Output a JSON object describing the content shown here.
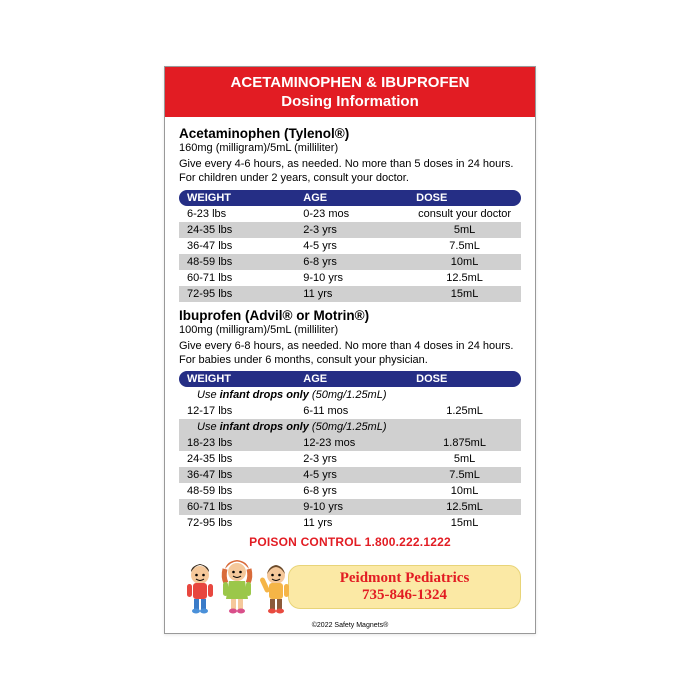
{
  "colors": {
    "header_bg": "#e21c23",
    "header_fg": "#ffffff",
    "table_header_bg": "#252e85",
    "band_bg": "#d0d0d0",
    "poison_color": "#e21c23",
    "practice_bg": "#fbe9a5",
    "practice_fg": "#e21c23"
  },
  "header": {
    "line1": "ACETAMINOPHEN & IBUPROFEN",
    "line2": "Dosing Information"
  },
  "acetaminophen": {
    "title": "Acetaminophen (Tylenol®)",
    "concentration": "160mg (milligram)/5mL (milliliter)",
    "instructions": "Give every 4-6 hours, as needed. No more than 5 doses in 24 hours. For children under 2 years, consult your doctor.",
    "columns": {
      "weight": "WEIGHT",
      "age": "AGE",
      "dose": "DOSE"
    },
    "rows": [
      {
        "weight": "6-23 lbs",
        "age": "0-23 mos",
        "dose": "consult your doctor",
        "band": false
      },
      {
        "weight": "24-35 lbs",
        "age": "2-3 yrs",
        "dose": "5mL",
        "band": true
      },
      {
        "weight": "36-47 lbs",
        "age": "4-5 yrs",
        "dose": "7.5mL",
        "band": false
      },
      {
        "weight": "48-59 lbs",
        "age": "6-8 yrs",
        "dose": "10mL",
        "band": true
      },
      {
        "weight": "60-71 lbs",
        "age": "9-10 yrs",
        "dose": "12.5mL",
        "band": false
      },
      {
        "weight": "72-95 lbs",
        "age": "11 yrs",
        "dose": "15mL",
        "band": true
      }
    ]
  },
  "ibuprofen": {
    "title": "Ibuprofen (Advil® or Motrin®)",
    "concentration": "100mg (milligram)/5mL (milliliter)",
    "instructions": "Give every 6-8 hours, as needed. No more than 4 doses in 24 hours. For babies under 6 months, consult your physician.",
    "columns": {
      "weight": "WEIGHT",
      "age": "AGE",
      "dose": "DOSE"
    },
    "infant_note_prefix": "Use ",
    "infant_note_bold": "infant drops only",
    "infant_note_suffix": " (50mg/1.25mL)",
    "rows": [
      {
        "weight": "12-17 lbs",
        "age": "6-11 mos",
        "dose": "1.25mL",
        "band": false
      },
      {
        "weight": "18-23 lbs",
        "age": "12-23 mos",
        "dose": "1.875mL",
        "band": true
      },
      {
        "weight": "24-35 lbs",
        "age": "2-3 yrs",
        "dose": "5mL",
        "band": false
      },
      {
        "weight": "36-47 lbs",
        "age": "4-5 yrs",
        "dose": "7.5mL",
        "band": true
      },
      {
        "weight": "48-59 lbs",
        "age": "6-8 yrs",
        "dose": "10mL",
        "band": false
      },
      {
        "weight": "60-71 lbs",
        "age": "9-10 yrs",
        "dose": "12.5mL",
        "band": true
      },
      {
        "weight": "72-95 lbs",
        "age": "11 yrs",
        "dose": "15mL",
        "band": false
      }
    ]
  },
  "poison_control": "POISON CONTROL 1.800.222.1222",
  "practice": {
    "name": "Peidmont Pediatrics",
    "phone": "735-846-1324"
  },
  "copyright": "©2022 Safety Magnets®"
}
